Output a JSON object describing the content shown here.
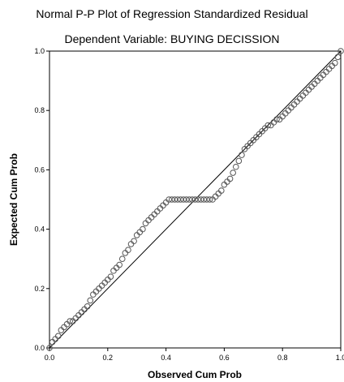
{
  "chart_data": {
    "type": "scatter",
    "title": "Normal P-P Plot of Regression Standardized Residual",
    "subtitle": "Dependent Variable: BUYING DECISSION",
    "xlabel": "Observed Cum Prob",
    "ylabel": "Expected Cum Prob",
    "xlim": [
      0,
      1
    ],
    "ylim": [
      0,
      1
    ],
    "x_ticks": [
      "0.0",
      "0.2",
      "0.4",
      "0.6",
      "0.8",
      "1.0"
    ],
    "y_ticks": [
      "0.0",
      "0.2",
      "0.4",
      "0.6",
      "0.8",
      "1.0"
    ],
    "grid": false,
    "legend": "none",
    "reference_line": {
      "x": [
        0,
        1
      ],
      "y": [
        0,
        1
      ]
    },
    "series": [
      {
        "x": [
          0.0,
          0.01,
          0.02,
          0.03,
          0.04,
          0.05,
          0.06,
          0.07,
          0.08,
          0.09,
          0.1,
          0.11,
          0.12,
          0.13,
          0.14,
          0.15,
          0.16,
          0.17,
          0.18,
          0.19,
          0.2,
          0.21,
          0.22,
          0.23,
          0.24,
          0.25,
          0.26,
          0.27,
          0.28,
          0.29,
          0.3,
          0.31,
          0.32,
          0.33,
          0.34,
          0.35,
          0.36,
          0.37,
          0.38,
          0.39,
          0.4,
          0.41,
          0.42,
          0.43,
          0.44,
          0.45,
          0.46,
          0.47,
          0.48,
          0.49,
          0.5,
          0.51,
          0.52,
          0.53,
          0.54,
          0.55,
          0.56,
          0.57,
          0.58,
          0.59,
          0.6,
          0.61,
          0.62,
          0.63,
          0.64,
          0.65,
          0.66,
          0.67,
          0.68,
          0.69,
          0.7,
          0.71,
          0.72,
          0.73,
          0.74,
          0.75,
          0.76,
          0.77,
          0.78,
          0.79,
          0.8,
          0.81,
          0.82,
          0.83,
          0.84,
          0.85,
          0.86,
          0.87,
          0.88,
          0.89,
          0.9,
          0.91,
          0.92,
          0.93,
          0.94,
          0.95,
          0.96,
          0.97,
          0.98,
          0.99,
          1.0
        ],
        "y": [
          0.0,
          0.02,
          0.03,
          0.04,
          0.06,
          0.07,
          0.08,
          0.09,
          0.09,
          0.1,
          0.11,
          0.12,
          0.13,
          0.14,
          0.16,
          0.18,
          0.19,
          0.2,
          0.21,
          0.22,
          0.23,
          0.24,
          0.26,
          0.27,
          0.28,
          0.3,
          0.32,
          0.33,
          0.35,
          0.36,
          0.38,
          0.39,
          0.4,
          0.42,
          0.43,
          0.44,
          0.45,
          0.46,
          0.47,
          0.48,
          0.49,
          0.5,
          0.5,
          0.5,
          0.5,
          0.5,
          0.5,
          0.5,
          0.5,
          0.5,
          0.5,
          0.5,
          0.5,
          0.5,
          0.5,
          0.5,
          0.5,
          0.51,
          0.52,
          0.53,
          0.55,
          0.56,
          0.57,
          0.59,
          0.61,
          0.63,
          0.65,
          0.67,
          0.68,
          0.69,
          0.7,
          0.71,
          0.72,
          0.73,
          0.74,
          0.75,
          0.75,
          0.76,
          0.77,
          0.77,
          0.78,
          0.79,
          0.8,
          0.81,
          0.82,
          0.83,
          0.84,
          0.85,
          0.86,
          0.87,
          0.88,
          0.89,
          0.9,
          0.91,
          0.92,
          0.93,
          0.94,
          0.95,
          0.96,
          0.98,
          1.0
        ]
      }
    ]
  }
}
